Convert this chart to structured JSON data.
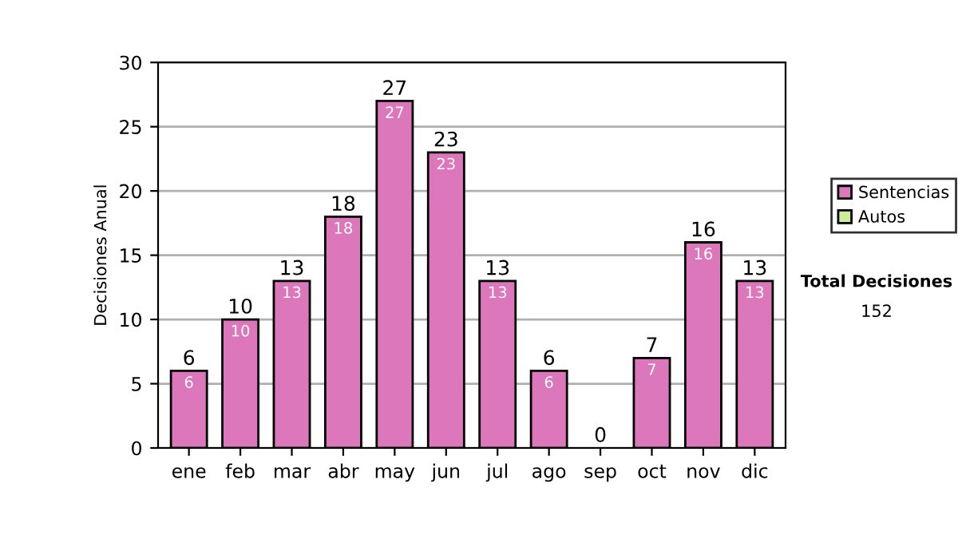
{
  "chart_data": {
    "type": "bar",
    "ylabel": "Decisiones Anual",
    "categories": [
      "ene",
      "feb",
      "mar",
      "abr",
      "may",
      "jun",
      "jul",
      "ago",
      "sep",
      "oct",
      "nov",
      "dic"
    ],
    "series": [
      {
        "name": "Sentencias",
        "color": "#dd77bb",
        "values": [
          6,
          10,
          13,
          18,
          27,
          23,
          13,
          6,
          0,
          7,
          16,
          13
        ],
        "value_labels": [
          "6",
          "10",
          "13",
          "18",
          "27",
          "23",
          "13",
          "6",
          null,
          "7",
          "16",
          "13"
        ]
      },
      {
        "name": "Autos",
        "color": "#ccee99",
        "values": [
          null,
          null,
          null,
          null,
          null,
          null,
          null,
          null,
          null,
          null,
          null,
          null
        ]
      }
    ],
    "stacked": true,
    "totals": [
      "6",
      "10",
      "13",
      "18",
      "27",
      "23",
      "13",
      "6",
      "0",
      "7",
      "16",
      "13"
    ],
    "ylim": [
      0,
      30
    ],
    "yticks": [
      0,
      5,
      10,
      15,
      20,
      25,
      30
    ],
    "grid": "y",
    "legend": "right",
    "annotations": [
      "Total Decisiones",
      "152"
    ]
  }
}
